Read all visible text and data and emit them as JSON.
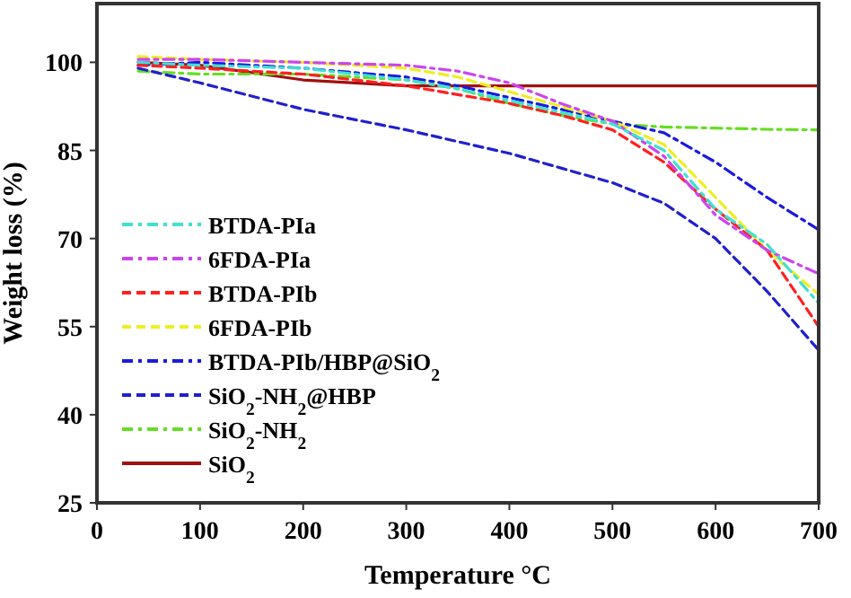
{
  "chart_data": {
    "type": "line",
    "xlabel": "Temperature °C",
    "ylabel": "Weight loss (%)",
    "xlim": [
      0,
      700
    ],
    "ylim": [
      25,
      110
    ],
    "xticks": [
      0,
      100,
      200,
      300,
      400,
      500,
      600,
      700
    ],
    "yticks": [
      25,
      40,
      55,
      70,
      85,
      100
    ],
    "grid": false,
    "legend": "bottom left",
    "marker": "none",
    "x": [
      40,
      100,
      200,
      300,
      350,
      400,
      450,
      500,
      550,
      600,
      650,
      700
    ],
    "series": [
      {
        "name": "BTDA-PIa",
        "color": "#40e0d0",
        "line_style": "dashdot",
        "values": [
          100,
          99.5,
          99,
          97,
          95.5,
          93.5,
          91.5,
          89.5,
          85,
          75,
          69,
          59
        ]
      },
      {
        "name": "6FDA-PIa",
        "color": "#cc44ee",
        "line_style": "dashdot",
        "values": [
          100.5,
          100.5,
          100,
          99.5,
          98.5,
          96.5,
          93,
          90,
          84,
          74,
          68,
          64
        ]
      },
      {
        "name": "BTDA-PIb",
        "color": "#ff2020",
        "line_style": "dashed",
        "values": [
          99.5,
          99,
          98,
          96,
          94.5,
          93,
          91,
          88.5,
          83,
          75,
          68,
          55
        ]
      },
      {
        "name": "6FDA-PIb",
        "color": "#eeee22",
        "line_style": "dashed",
        "values": [
          101,
          100.5,
          100,
          99,
          97.5,
          95,
          92.5,
          90,
          86,
          77,
          68,
          60.5
        ]
      },
      {
        "name": "BTDA-PIb/HBP@SiO$_{2}$",
        "color": "#1a1adf",
        "line_style": "dashdot",
        "values": [
          99.5,
          100,
          99,
          97.5,
          96,
          94,
          92,
          90,
          88,
          83,
          77,
          71.5
        ]
      },
      {
        "name": "SiO$_{2}$-NH$_{2}$@HBP",
        "color": "#2020cc",
        "line_style": "dashed",
        "values": [
          99,
          96.5,
          92,
          88.5,
          86.5,
          84.5,
          82,
          79.5,
          76,
          70,
          61,
          51
        ]
      },
      {
        "name": "SiO$_{2}$-NH$_{2}$",
        "color": "#66dd22",
        "line_style": "dashdot",
        "values": [
          98.5,
          98,
          98,
          97,
          95.5,
          93,
          91,
          89.5,
          89,
          88.8,
          88.6,
          88.5
        ]
      },
      {
        "name": "SiO$_{2}$",
        "color": "#a01010",
        "line_style": "solid",
        "values": [
          100,
          99.5,
          97,
          96,
          96,
          96,
          96,
          96,
          96,
          96,
          96,
          96
        ]
      }
    ]
  }
}
